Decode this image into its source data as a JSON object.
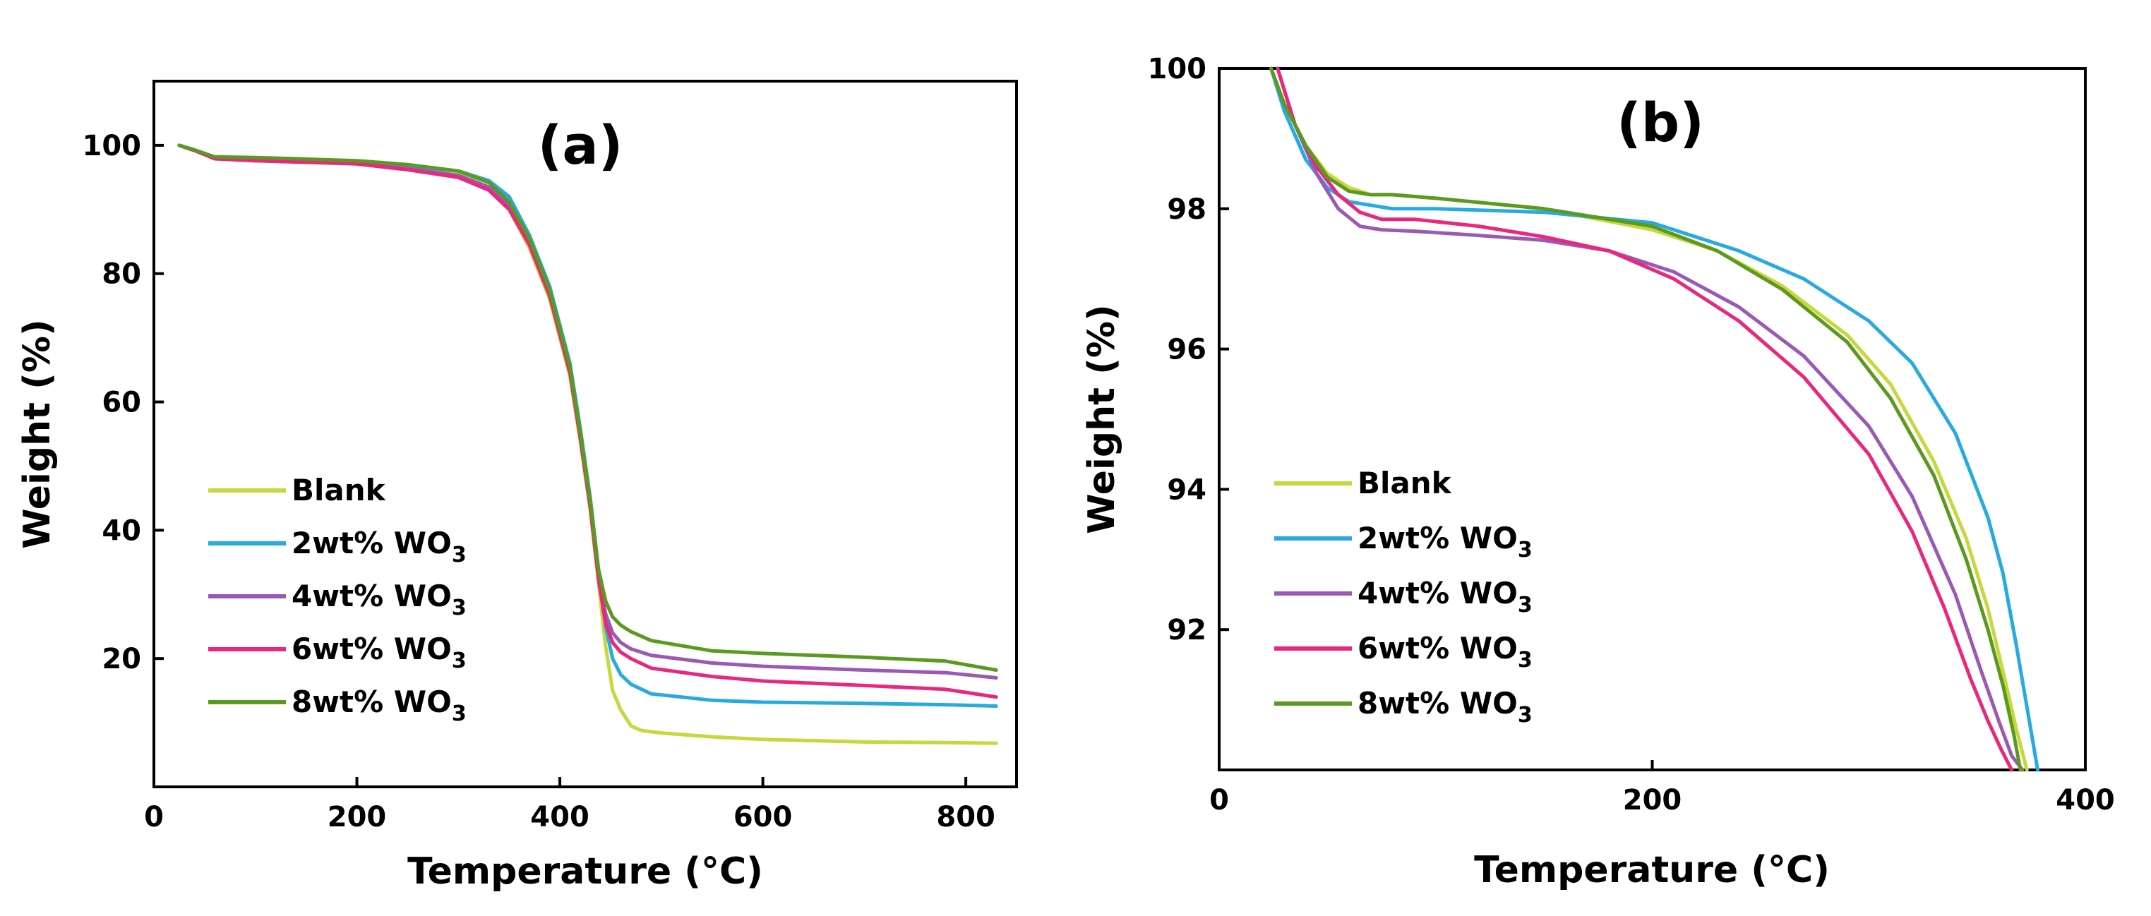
{
  "chart_data": [
    {
      "id": "a",
      "type": "line",
      "title": "(a)",
      "xlabel": "Temperature (°C)",
      "ylabel": "Weight (%)",
      "xlim": [
        0,
        850
      ],
      "ylim": [
        0,
        110
      ],
      "xticks": [
        0,
        200,
        400,
        600,
        800
      ],
      "yticks": [
        20,
        40,
        60,
        80,
        100
      ],
      "legend_position": "lower-left",
      "series": [
        {
          "name": "Blank",
          "label_main": "Blank",
          "label_sub": "",
          "color": "#c8d73c",
          "x": [
            25,
            40,
            60,
            100,
            200,
            250,
            300,
            330,
            350,
            370,
            390,
            410,
            420,
            430,
            438,
            445,
            452,
            460,
            470,
            480,
            500,
            550,
            600,
            700,
            780,
            830
          ],
          "y": [
            100,
            99.2,
            98,
            97.8,
            97.3,
            96.5,
            95.5,
            93.5,
            90,
            84,
            76,
            64,
            54,
            43,
            32,
            22,
            15,
            12,
            9.5,
            8.8,
            8.4,
            7.8,
            7.4,
            7.0,
            6.9,
            6.8
          ]
        },
        {
          "name": "2wt% WO3",
          "label_main": "2wt% WO",
          "label_sub": "3",
          "color": "#27aae1",
          "x": [
            25,
            40,
            60,
            100,
            200,
            250,
            300,
            330,
            350,
            370,
            390,
            410,
            420,
            430,
            438,
            445,
            452,
            460,
            470,
            490,
            550,
            600,
            700,
            780,
            830
          ],
          "y": [
            100,
            99.2,
            98,
            97.8,
            97.4,
            96.8,
            96,
            94.5,
            92,
            86,
            78,
            66,
            56,
            45,
            34,
            25,
            20,
            17.5,
            16,
            14.5,
            13.5,
            13.2,
            13,
            12.8,
            12.6
          ]
        },
        {
          "name": "4wt% WO3",
          "label_main": "4wt% WO",
          "label_sub": "3",
          "color": "#9b59b6",
          "x": [
            25,
            40,
            60,
            100,
            200,
            250,
            300,
            330,
            350,
            370,
            390,
            410,
            420,
            430,
            438,
            445,
            452,
            460,
            470,
            490,
            550,
            600,
            700,
            780,
            830
          ],
          "y": [
            100,
            99.2,
            98,
            97.6,
            97.2,
            96.4,
            95.3,
            93.5,
            90.5,
            85,
            77,
            65,
            55,
            44,
            33,
            27,
            24,
            22.5,
            21.5,
            20.5,
            19.3,
            18.8,
            18.2,
            17.8,
            17.0
          ]
        },
        {
          "name": "6wt% WO3",
          "label_main": "6wt% WO",
          "label_sub": "3",
          "color": "#e8287c",
          "x": [
            25,
            40,
            60,
            100,
            200,
            250,
            300,
            330,
            350,
            370,
            390,
            410,
            420,
            430,
            438,
            445,
            452,
            460,
            470,
            490,
            550,
            600,
            700,
            780,
            830
          ],
          "y": [
            100,
            99.2,
            97.9,
            97.6,
            97.1,
            96.2,
            95,
            93,
            90,
            84.5,
            76.5,
            64.5,
            54.5,
            43.5,
            32.5,
            25.5,
            22.5,
            21,
            20,
            18.5,
            17.2,
            16.5,
            15.8,
            15.2,
            14.0
          ]
        },
        {
          "name": "8wt% WO3",
          "label_main": "8wt% WO",
          "label_sub": "3",
          "color": "#5a9a1e",
          "x": [
            25,
            40,
            60,
            100,
            200,
            250,
            300,
            330,
            350,
            370,
            390,
            410,
            420,
            430,
            438,
            445,
            452,
            460,
            470,
            490,
            550,
            600,
            700,
            780,
            830
          ],
          "y": [
            100,
            99.3,
            98.2,
            98.1,
            97.6,
            97.0,
            96.0,
            94.2,
            91.2,
            85.5,
            77.5,
            65.5,
            55.5,
            44.5,
            34,
            29,
            26.5,
            25.2,
            24.2,
            22.8,
            21.2,
            20.8,
            20.2,
            19.6,
            18.2
          ]
        }
      ]
    },
    {
      "id": "b",
      "type": "line",
      "title": "(b)",
      "xlabel": "Temperature (°C)",
      "ylabel": "Weight (%)",
      "xlim": [
        0,
        400
      ],
      "ylim": [
        90,
        100
      ],
      "xticks": [
        0,
        200,
        400
      ],
      "yticks": [
        92,
        94,
        96,
        98,
        100
      ],
      "legend_position": "lower-left",
      "series": [
        {
          "name": "Blank",
          "label_main": "Blank",
          "label_sub": "",
          "color": "#c8d73c",
          "x": [
            24,
            30,
            40,
            50,
            60,
            70,
            80,
            100,
            150,
            200,
            230,
            260,
            290,
            310,
            330,
            345,
            355,
            362,
            368,
            373
          ],
          "y": [
            100,
            99.5,
            98.9,
            98.5,
            98.3,
            98.2,
            98.2,
            98.15,
            98.0,
            97.7,
            97.4,
            96.9,
            96.2,
            95.5,
            94.4,
            93.3,
            92.3,
            91.4,
            90.6,
            90.0
          ]
        },
        {
          "name": "2wt% WO3",
          "label_main": "2wt% WO",
          "label_sub": "3",
          "color": "#27aae1",
          "x": [
            24,
            30,
            40,
            50,
            60,
            70,
            80,
            100,
            150,
            200,
            240,
            270,
            300,
            320,
            340,
            355,
            362,
            368,
            373,
            378
          ],
          "y": [
            100,
            99.4,
            98.7,
            98.3,
            98.1,
            98.05,
            98.0,
            98.0,
            97.95,
            97.8,
            97.4,
            97.0,
            96.4,
            95.8,
            94.8,
            93.6,
            92.8,
            91.8,
            90.9,
            90.0
          ]
        },
        {
          "name": "4wt% WO3",
          "label_main": "4wt% WO",
          "label_sub": "3",
          "color": "#9b59b6",
          "x": [
            27,
            35,
            45,
            55,
            65,
            75,
            90,
            120,
            150,
            180,
            210,
            240,
            270,
            300,
            320,
            340,
            352,
            360,
            366,
            371
          ],
          "y": [
            100,
            99.2,
            98.5,
            98.0,
            97.75,
            97.7,
            97.68,
            97.62,
            97.55,
            97.4,
            97.1,
            96.6,
            95.9,
            94.9,
            93.9,
            92.5,
            91.4,
            90.7,
            90.2,
            90.0
          ]
        },
        {
          "name": "6wt% WO3",
          "label_main": "6wt% WO",
          "label_sub": "3",
          "color": "#e8287c",
          "x": [
            27,
            35,
            45,
            55,
            65,
            75,
            90,
            120,
            150,
            180,
            210,
            240,
            270,
            300,
            320,
            335,
            347,
            355,
            361,
            366
          ],
          "y": [
            100,
            99.2,
            98.6,
            98.2,
            97.95,
            97.85,
            97.85,
            97.75,
            97.6,
            97.4,
            97.0,
            96.4,
            95.6,
            94.5,
            93.4,
            92.3,
            91.3,
            90.7,
            90.3,
            90.0
          ]
        },
        {
          "name": "8wt% WO3",
          "label_main": "8wt% WO",
          "label_sub": "3",
          "color": "#5a9a1e",
          "x": [
            24,
            30,
            40,
            50,
            60,
            70,
            80,
            100,
            150,
            200,
            230,
            260,
            290,
            310,
            330,
            345,
            355,
            362,
            367,
            370
          ],
          "y": [
            100,
            99.5,
            98.9,
            98.45,
            98.25,
            98.2,
            98.2,
            98.15,
            98.0,
            97.75,
            97.4,
            96.85,
            96.1,
            95.3,
            94.2,
            93.0,
            92.0,
            91.2,
            90.5,
            90.0
          ]
        }
      ]
    }
  ]
}
